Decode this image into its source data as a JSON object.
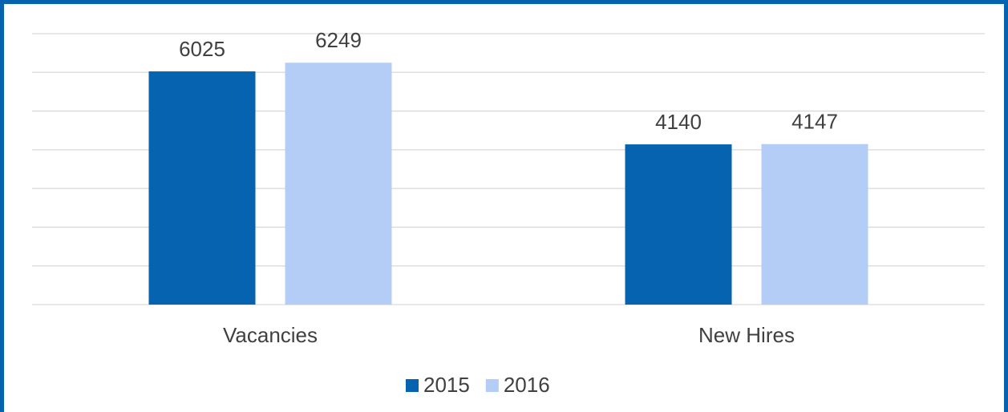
{
  "chart_data": {
    "type": "bar",
    "categories": [
      "Vacancies",
      "New Hires"
    ],
    "series": [
      {
        "name": "2015",
        "color": "#0563b0",
        "values": [
          6025,
          4140
        ]
      },
      {
        "name": "2016",
        "color": "#b4cdf6",
        "values": [
          6249,
          4147
        ]
      }
    ],
    "ylim": [
      0,
      7000
    ],
    "yticks": [
      0,
      1000,
      2000,
      3000,
      4000,
      5000,
      6000,
      7000
    ],
    "grid": true,
    "legend": "bottom"
  }
}
